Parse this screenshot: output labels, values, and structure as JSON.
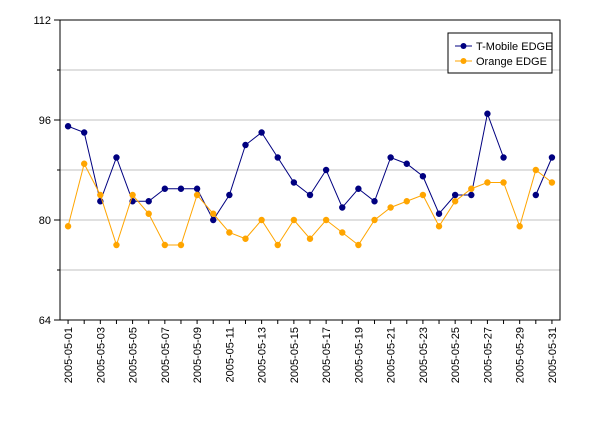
{
  "chart_data": {
    "type": "line",
    "title": "",
    "xlabel": "",
    "ylabel": "",
    "ylim": [
      64,
      112
    ],
    "yticks": [
      64,
      80,
      96,
      112
    ],
    "grid": true,
    "legend_position": "top-right",
    "x": [
      "2005-05-01",
      "2005-05-02",
      "2005-05-03",
      "2005-05-04",
      "2005-05-05",
      "2005-05-06",
      "2005-05-07",
      "2005-05-08",
      "2005-05-09",
      "2005-05-10",
      "2005-05-11",
      "2005-05-12",
      "2005-05-13",
      "2005-05-14",
      "2005-05-15",
      "2005-05-16",
      "2005-05-17",
      "2005-05-18",
      "2005-05-19",
      "2005-05-20",
      "2005-05-21",
      "2005-05-22",
      "2005-05-23",
      "2005-05-24",
      "2005-05-25",
      "2005-05-26",
      "2005-05-27",
      "2005-05-28",
      "2005-05-29",
      "2005-05-30",
      "2005-05-31"
    ],
    "xtick_labels": [
      "2005-05-01",
      "2005-05-03",
      "2005-05-05",
      "2005-05-07",
      "2005-05-09",
      "2005-05-11",
      "2005-05-13",
      "2005-05-15",
      "2005-05-17",
      "2005-05-19",
      "2005-05-21",
      "2005-05-23",
      "2005-05-25",
      "2005-05-27",
      "2005-05-29",
      "2005-05-31"
    ],
    "series": [
      {
        "name": "T-Mobile EDGE",
        "color": "#000080",
        "values": [
          95,
          94,
          83,
          90,
          83,
          83,
          85,
          85,
          85,
          80,
          84,
          92,
          94,
          90,
          86,
          84,
          88,
          82,
          85,
          83,
          90,
          89,
          87,
          81,
          84,
          84,
          97,
          90,
          null,
          84,
          90
        ]
      },
      {
        "name": "Orange EDGE",
        "color": "#FFA500",
        "values": [
          79,
          89,
          84,
          76,
          84,
          81,
          76,
          76,
          84,
          81,
          78,
          77,
          80,
          76,
          80,
          77,
          80,
          78,
          76,
          80,
          82,
          83,
          84,
          79,
          83,
          85,
          86,
          86,
          79,
          88,
          86
        ]
      }
    ]
  }
}
